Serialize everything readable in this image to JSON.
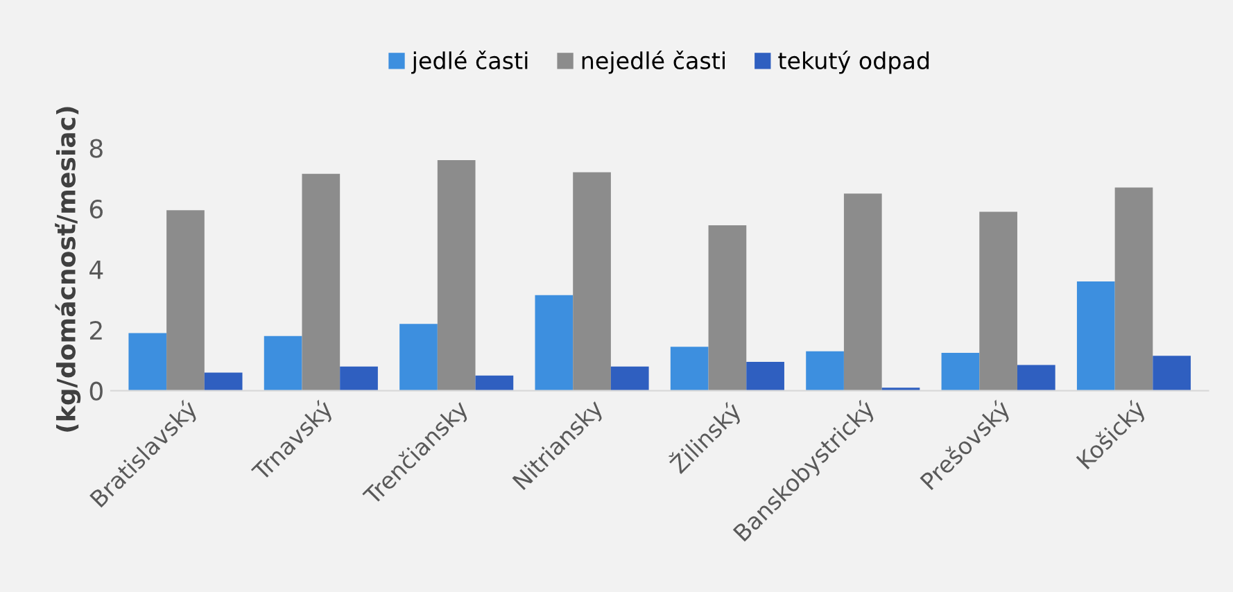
{
  "chart_data": {
    "type": "bar",
    "ylabel": "(kg/domácnosť/mesiac)",
    "categories": [
      "Bratislavský",
      "Trnavský",
      "Trenčiansky",
      "Nitriansky",
      "Žilinský",
      "Banskobystrický",
      "Prešovský",
      "Košický"
    ],
    "series": [
      {
        "name": "jedlé časti",
        "color": "#3d8fdf",
        "values": [
          1.9,
          1.8,
          2.2,
          3.15,
          1.45,
          1.3,
          1.25,
          3.6
        ]
      },
      {
        "name": "nejedlé časti",
        "color": "#8c8c8c",
        "values": [
          5.95,
          7.15,
          7.6,
          7.2,
          5.45,
          6.5,
          5.9,
          6.7
        ]
      },
      {
        "name": "tekutý odpad",
        "color": "#2f5fc0",
        "values": [
          0.6,
          0.8,
          0.5,
          0.8,
          0.95,
          0.1,
          0.85,
          1.15
        ]
      }
    ],
    "ylim": [
      0,
      8
    ],
    "yticks": [
      0,
      2,
      4,
      6,
      8
    ],
    "grid": false,
    "legend": "top"
  }
}
